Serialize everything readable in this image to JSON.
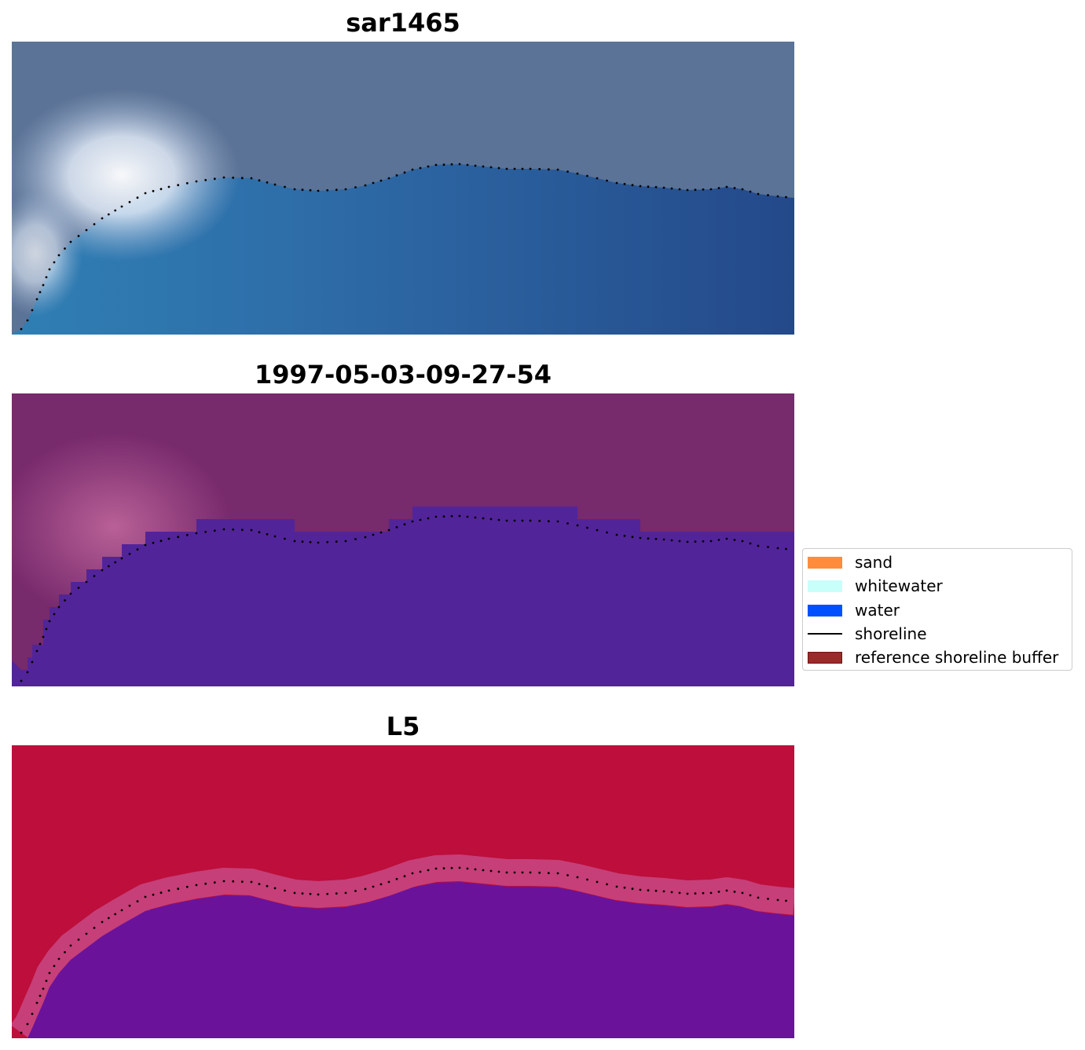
{
  "panels": [
    {
      "title": "sar1465",
      "kind": "rgb"
    },
    {
      "title": "1997-05-03-09-27-54",
      "kind": "classified"
    },
    {
      "title": "L5",
      "kind": "index"
    }
  ],
  "legend": {
    "items": [
      {
        "label": "sand",
        "type": "patch",
        "color": "#ff8c3c"
      },
      {
        "label": "whitewater",
        "type": "patch",
        "color": "#c8fffa"
      },
      {
        "label": "water",
        "type": "patch",
        "color": "#0050ff"
      },
      {
        "label": "shoreline",
        "type": "line",
        "color": "#000000"
      },
      {
        "label": "reference shoreline buffer",
        "type": "patch",
        "color": "#9b2a2a"
      }
    ]
  },
  "colors": {
    "rgb_land": "#5b7396",
    "rgb_water": "#245296",
    "rgb_whitewater": "#f4f6fb",
    "classified_land": "#772a6c",
    "classified_water": "#522499",
    "classified_glow": "#c46a9e",
    "index_land": "#bd0e3c",
    "index_water": "#6a139a",
    "index_edge": "#c9508c"
  }
}
